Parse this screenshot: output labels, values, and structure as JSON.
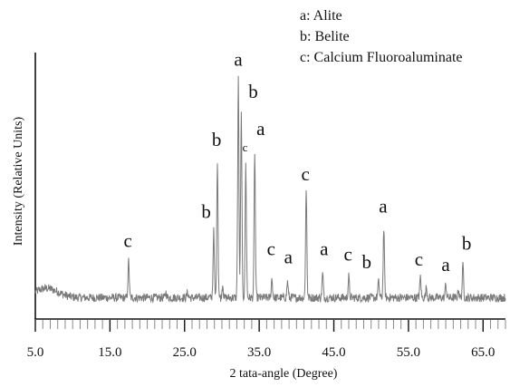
{
  "chart_data": {
    "type": "line",
    "title": "",
    "xlabel": "2 tata-angle (Degree)",
    "ylabel": "Intensity (Relative Units)",
    "xlim": [
      5,
      68
    ],
    "ylim": [
      0,
      100
    ],
    "grid": false,
    "legend_position": "top-right",
    "x_ticks": [
      "5.0",
      "15.0",
      "25.0",
      "35.0",
      "45.0",
      "55.0",
      "65.0"
    ],
    "legend": [
      "a: Alite",
      "b: Belite",
      "c: Calcium Fluoroaluminate"
    ],
    "series": [
      {
        "color": "#7a7a7a",
        "baseline": 8,
        "peaks": [
          {
            "x": 17.5,
            "y": 22
          },
          {
            "x": 22.5,
            "y": 10
          },
          {
            "x": 25.4,
            "y": 10
          },
          {
            "x": 28.9,
            "y": 33
          },
          {
            "x": 29.4,
            "y": 60
          },
          {
            "x": 30.1,
            "y": 13
          },
          {
            "x": 32.2,
            "y": 90
          },
          {
            "x": 32.6,
            "y": 77
          },
          {
            "x": 33.2,
            "y": 58
          },
          {
            "x": 34.4,
            "y": 63
          },
          {
            "x": 36.7,
            "y": 15
          },
          {
            "x": 38.8,
            "y": 14
          },
          {
            "x": 41.3,
            "y": 48
          },
          {
            "x": 43.5,
            "y": 17
          },
          {
            "x": 47.0,
            "y": 16
          },
          {
            "x": 51.0,
            "y": 14
          },
          {
            "x": 51.7,
            "y": 34
          },
          {
            "x": 56.6,
            "y": 16
          },
          {
            "x": 57.4,
            "y": 12
          },
          {
            "x": 60.0,
            "y": 13
          },
          {
            "x": 61.7,
            "y": 11
          },
          {
            "x": 62.3,
            "y": 20
          }
        ]
      }
    ],
    "annotations": [
      {
        "text": "c",
        "x": 17.4,
        "y": 27
      },
      {
        "text": "b",
        "x": 27.9,
        "y": 38
      },
      {
        "text": "b",
        "x": 29.3,
        "y": 65
      },
      {
        "text": "a",
        "x": 32.2,
        "y": 95
      },
      {
        "text": "b",
        "x": 34.2,
        "y": 83
      },
      {
        "text": "c",
        "x": 33.1,
        "y": 63,
        "small": true
      },
      {
        "text": "a",
        "x": 35.2,
        "y": 69
      },
      {
        "text": "c",
        "x": 36.6,
        "y": 24
      },
      {
        "text": "a",
        "x": 38.9,
        "y": 21
      },
      {
        "text": "c",
        "x": 41.2,
        "y": 52
      },
      {
        "text": "a",
        "x": 43.7,
        "y": 24
      },
      {
        "text": "c",
        "x": 46.9,
        "y": 22
      },
      {
        "text": "b",
        "x": 49.4,
        "y": 19
      },
      {
        "text": "a",
        "x": 51.6,
        "y": 40
      },
      {
        "text": "c",
        "x": 56.4,
        "y": 20
      },
      {
        "text": "a",
        "x": 60.0,
        "y": 18
      },
      {
        "text": "b",
        "x": 62.8,
        "y": 26
      }
    ]
  }
}
